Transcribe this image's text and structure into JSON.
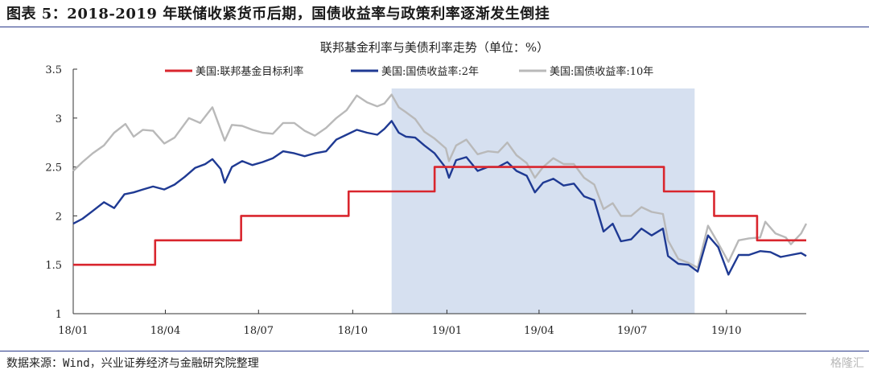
{
  "header": {
    "figure_title": "图表 5：2018-2019 年联储收紧货币后期，国债收益率与政策利率逐渐发生倒挂"
  },
  "footer": {
    "source": "数据来源：Wind，兴业证券经济与金融研究院整理",
    "watermark": "格隆汇"
  },
  "colors": {
    "fed": "#d9262e",
    "ust2": "#1f3a93",
    "ust10": "#b9b9b9",
    "shade": "#d6e0f0",
    "rule": "#2a3a8a"
  },
  "chart_data": {
    "type": "line",
    "title": "联邦基金利率与美债利率走势（单位：%）",
    "xlabel": "",
    "ylabel": "",
    "x_range": [
      "2018-01-01",
      "2019-12-18"
    ],
    "ylim": [
      1,
      3.5
    ],
    "y_ticks": [
      "1",
      "1.5",
      "2",
      "2.5",
      "3",
      "3.5"
    ],
    "x_ticks": [
      {
        "date": "2018-01-01",
        "label": "18/01"
      },
      {
        "date": "2018-04-01",
        "label": "18/04"
      },
      {
        "date": "2018-07-01",
        "label": "18/07"
      },
      {
        "date": "2018-10-01",
        "label": "18/10"
      },
      {
        "date": "2019-01-01",
        "label": "19/01"
      },
      {
        "date": "2019-04-01",
        "label": "19/04"
      },
      {
        "date": "2019-07-01",
        "label": "19/07"
      },
      {
        "date": "2019-10-01",
        "label": "19/10"
      }
    ],
    "legend_position": "top",
    "grid": false,
    "shaded_region": {
      "start": "2018-11-08",
      "end": "2019-08-31"
    },
    "series": [
      {
        "name": "美国:联邦基金目标利率",
        "color": "#d9262e",
        "step": true,
        "points": [
          [
            "2018-01-01",
            1.5
          ],
          [
            "2018-03-22",
            1.75
          ],
          [
            "2018-06-14",
            2.0
          ],
          [
            "2018-09-27",
            2.25
          ],
          [
            "2018-12-20",
            2.5
          ],
          [
            "2019-08-01",
            2.25
          ],
          [
            "2019-09-19",
            2.0
          ],
          [
            "2019-10-31",
            1.75
          ],
          [
            "2019-12-18",
            1.75
          ]
        ]
      },
      {
        "name": "美国:国债收益率:2年",
        "color": "#1f3a93",
        "points": [
          [
            "2018-01-01",
            1.92
          ],
          [
            "2018-01-10",
            1.97
          ],
          [
            "2018-01-20",
            2.05
          ],
          [
            "2018-01-31",
            2.14
          ],
          [
            "2018-02-10",
            2.08
          ],
          [
            "2018-02-20",
            2.22
          ],
          [
            "2018-03-01",
            2.24
          ],
          [
            "2018-03-10",
            2.27
          ],
          [
            "2018-03-20",
            2.3
          ],
          [
            "2018-03-31",
            2.27
          ],
          [
            "2018-04-10",
            2.32
          ],
          [
            "2018-04-20",
            2.4
          ],
          [
            "2018-04-30",
            2.49
          ],
          [
            "2018-05-10",
            2.53
          ],
          [
            "2018-05-17",
            2.58
          ],
          [
            "2018-05-25",
            2.48
          ],
          [
            "2018-05-29",
            2.34
          ],
          [
            "2018-06-05",
            2.5
          ],
          [
            "2018-06-15",
            2.56
          ],
          [
            "2018-06-25",
            2.52
          ],
          [
            "2018-07-05",
            2.55
          ],
          [
            "2018-07-15",
            2.59
          ],
          [
            "2018-07-25",
            2.66
          ],
          [
            "2018-08-05",
            2.64
          ],
          [
            "2018-08-15",
            2.61
          ],
          [
            "2018-08-25",
            2.64
          ],
          [
            "2018-09-05",
            2.66
          ],
          [
            "2018-09-15",
            2.78
          ],
          [
            "2018-09-25",
            2.83
          ],
          [
            "2018-10-05",
            2.88
          ],
          [
            "2018-10-15",
            2.85
          ],
          [
            "2018-10-25",
            2.83
          ],
          [
            "2018-11-01",
            2.89
          ],
          [
            "2018-11-08",
            2.97
          ],
          [
            "2018-11-15",
            2.85
          ],
          [
            "2018-11-22",
            2.81
          ],
          [
            "2018-12-01",
            2.8
          ],
          [
            "2018-12-10",
            2.72
          ],
          [
            "2018-12-20",
            2.64
          ],
          [
            "2018-12-31",
            2.49
          ],
          [
            "2019-01-03",
            2.39
          ],
          [
            "2019-01-10",
            2.57
          ],
          [
            "2019-01-20",
            2.6
          ],
          [
            "2019-01-31",
            2.46
          ],
          [
            "2019-02-10",
            2.5
          ],
          [
            "2019-02-20",
            2.5
          ],
          [
            "2019-03-01",
            2.55
          ],
          [
            "2019-03-10",
            2.46
          ],
          [
            "2019-03-20",
            2.41
          ],
          [
            "2019-03-28",
            2.24
          ],
          [
            "2019-04-05",
            2.34
          ],
          [
            "2019-04-15",
            2.38
          ],
          [
            "2019-04-25",
            2.31
          ],
          [
            "2019-05-05",
            2.33
          ],
          [
            "2019-05-15",
            2.2
          ],
          [
            "2019-05-25",
            2.16
          ],
          [
            "2019-06-03",
            1.84
          ],
          [
            "2019-06-12",
            1.92
          ],
          [
            "2019-06-20",
            1.74
          ],
          [
            "2019-06-30",
            1.76
          ],
          [
            "2019-07-10",
            1.87
          ],
          [
            "2019-07-20",
            1.8
          ],
          [
            "2019-07-31",
            1.87
          ],
          [
            "2019-08-05",
            1.59
          ],
          [
            "2019-08-15",
            1.51
          ],
          [
            "2019-08-25",
            1.5
          ],
          [
            "2019-09-03",
            1.43
          ],
          [
            "2019-09-13",
            1.8
          ],
          [
            "2019-09-23",
            1.68
          ],
          [
            "2019-10-03",
            1.4
          ],
          [
            "2019-10-13",
            1.6
          ],
          [
            "2019-10-23",
            1.6
          ],
          [
            "2019-11-03",
            1.64
          ],
          [
            "2019-11-13",
            1.63
          ],
          [
            "2019-11-23",
            1.58
          ],
          [
            "2019-12-03",
            1.6
          ],
          [
            "2019-12-13",
            1.62
          ],
          [
            "2019-12-18",
            1.59
          ]
        ]
      },
      {
        "name": "美国:国债收益率:10年",
        "color": "#b9b9b9",
        "points": [
          [
            "2018-01-01",
            2.46
          ],
          [
            "2018-01-10",
            2.55
          ],
          [
            "2018-01-20",
            2.64
          ],
          [
            "2018-01-31",
            2.72
          ],
          [
            "2018-02-10",
            2.85
          ],
          [
            "2018-02-21",
            2.94
          ],
          [
            "2018-03-01",
            2.81
          ],
          [
            "2018-03-10",
            2.88
          ],
          [
            "2018-03-20",
            2.87
          ],
          [
            "2018-03-31",
            2.74
          ],
          [
            "2018-04-10",
            2.8
          ],
          [
            "2018-04-24",
            3.0
          ],
          [
            "2018-05-05",
            2.95
          ],
          [
            "2018-05-17",
            3.11
          ],
          [
            "2018-05-29",
            2.77
          ],
          [
            "2018-06-05",
            2.93
          ],
          [
            "2018-06-15",
            2.92
          ],
          [
            "2018-06-25",
            2.88
          ],
          [
            "2018-07-05",
            2.85
          ],
          [
            "2018-07-15",
            2.84
          ],
          [
            "2018-07-25",
            2.95
          ],
          [
            "2018-08-05",
            2.95
          ],
          [
            "2018-08-15",
            2.87
          ],
          [
            "2018-08-25",
            2.82
          ],
          [
            "2018-09-05",
            2.9
          ],
          [
            "2018-09-15",
            3.0
          ],
          [
            "2018-09-25",
            3.08
          ],
          [
            "2018-10-05",
            3.23
          ],
          [
            "2018-10-15",
            3.16
          ],
          [
            "2018-10-25",
            3.12
          ],
          [
            "2018-11-01",
            3.15
          ],
          [
            "2018-11-08",
            3.24
          ],
          [
            "2018-11-15",
            3.11
          ],
          [
            "2018-11-22",
            3.06
          ],
          [
            "2018-12-01",
            2.99
          ],
          [
            "2018-12-10",
            2.86
          ],
          [
            "2018-12-20",
            2.79
          ],
          [
            "2018-12-31",
            2.69
          ],
          [
            "2019-01-03",
            2.56
          ],
          [
            "2019-01-10",
            2.72
          ],
          [
            "2019-01-20",
            2.78
          ],
          [
            "2019-01-31",
            2.63
          ],
          [
            "2019-02-10",
            2.66
          ],
          [
            "2019-02-20",
            2.65
          ],
          [
            "2019-03-01",
            2.75
          ],
          [
            "2019-03-10",
            2.62
          ],
          [
            "2019-03-20",
            2.54
          ],
          [
            "2019-03-28",
            2.39
          ],
          [
            "2019-04-05",
            2.5
          ],
          [
            "2019-04-15",
            2.59
          ],
          [
            "2019-04-25",
            2.53
          ],
          [
            "2019-05-05",
            2.53
          ],
          [
            "2019-05-15",
            2.39
          ],
          [
            "2019-05-25",
            2.32
          ],
          [
            "2019-06-03",
            2.07
          ],
          [
            "2019-06-12",
            2.13
          ],
          [
            "2019-06-20",
            2.0
          ],
          [
            "2019-06-30",
            2.0
          ],
          [
            "2019-07-10",
            2.09
          ],
          [
            "2019-07-20",
            2.04
          ],
          [
            "2019-07-31",
            2.02
          ],
          [
            "2019-08-05",
            1.75
          ],
          [
            "2019-08-15",
            1.56
          ],
          [
            "2019-08-25",
            1.52
          ],
          [
            "2019-09-03",
            1.47
          ],
          [
            "2019-09-13",
            1.9
          ],
          [
            "2019-09-23",
            1.72
          ],
          [
            "2019-10-03",
            1.53
          ],
          [
            "2019-10-13",
            1.75
          ],
          [
            "2019-10-23",
            1.77
          ],
          [
            "2019-11-03",
            1.78
          ],
          [
            "2019-11-08",
            1.94
          ],
          [
            "2019-11-18",
            1.82
          ],
          [
            "2019-11-28",
            1.78
          ],
          [
            "2019-12-03",
            1.71
          ],
          [
            "2019-12-13",
            1.82
          ],
          [
            "2019-12-18",
            1.92
          ]
        ]
      }
    ]
  }
}
